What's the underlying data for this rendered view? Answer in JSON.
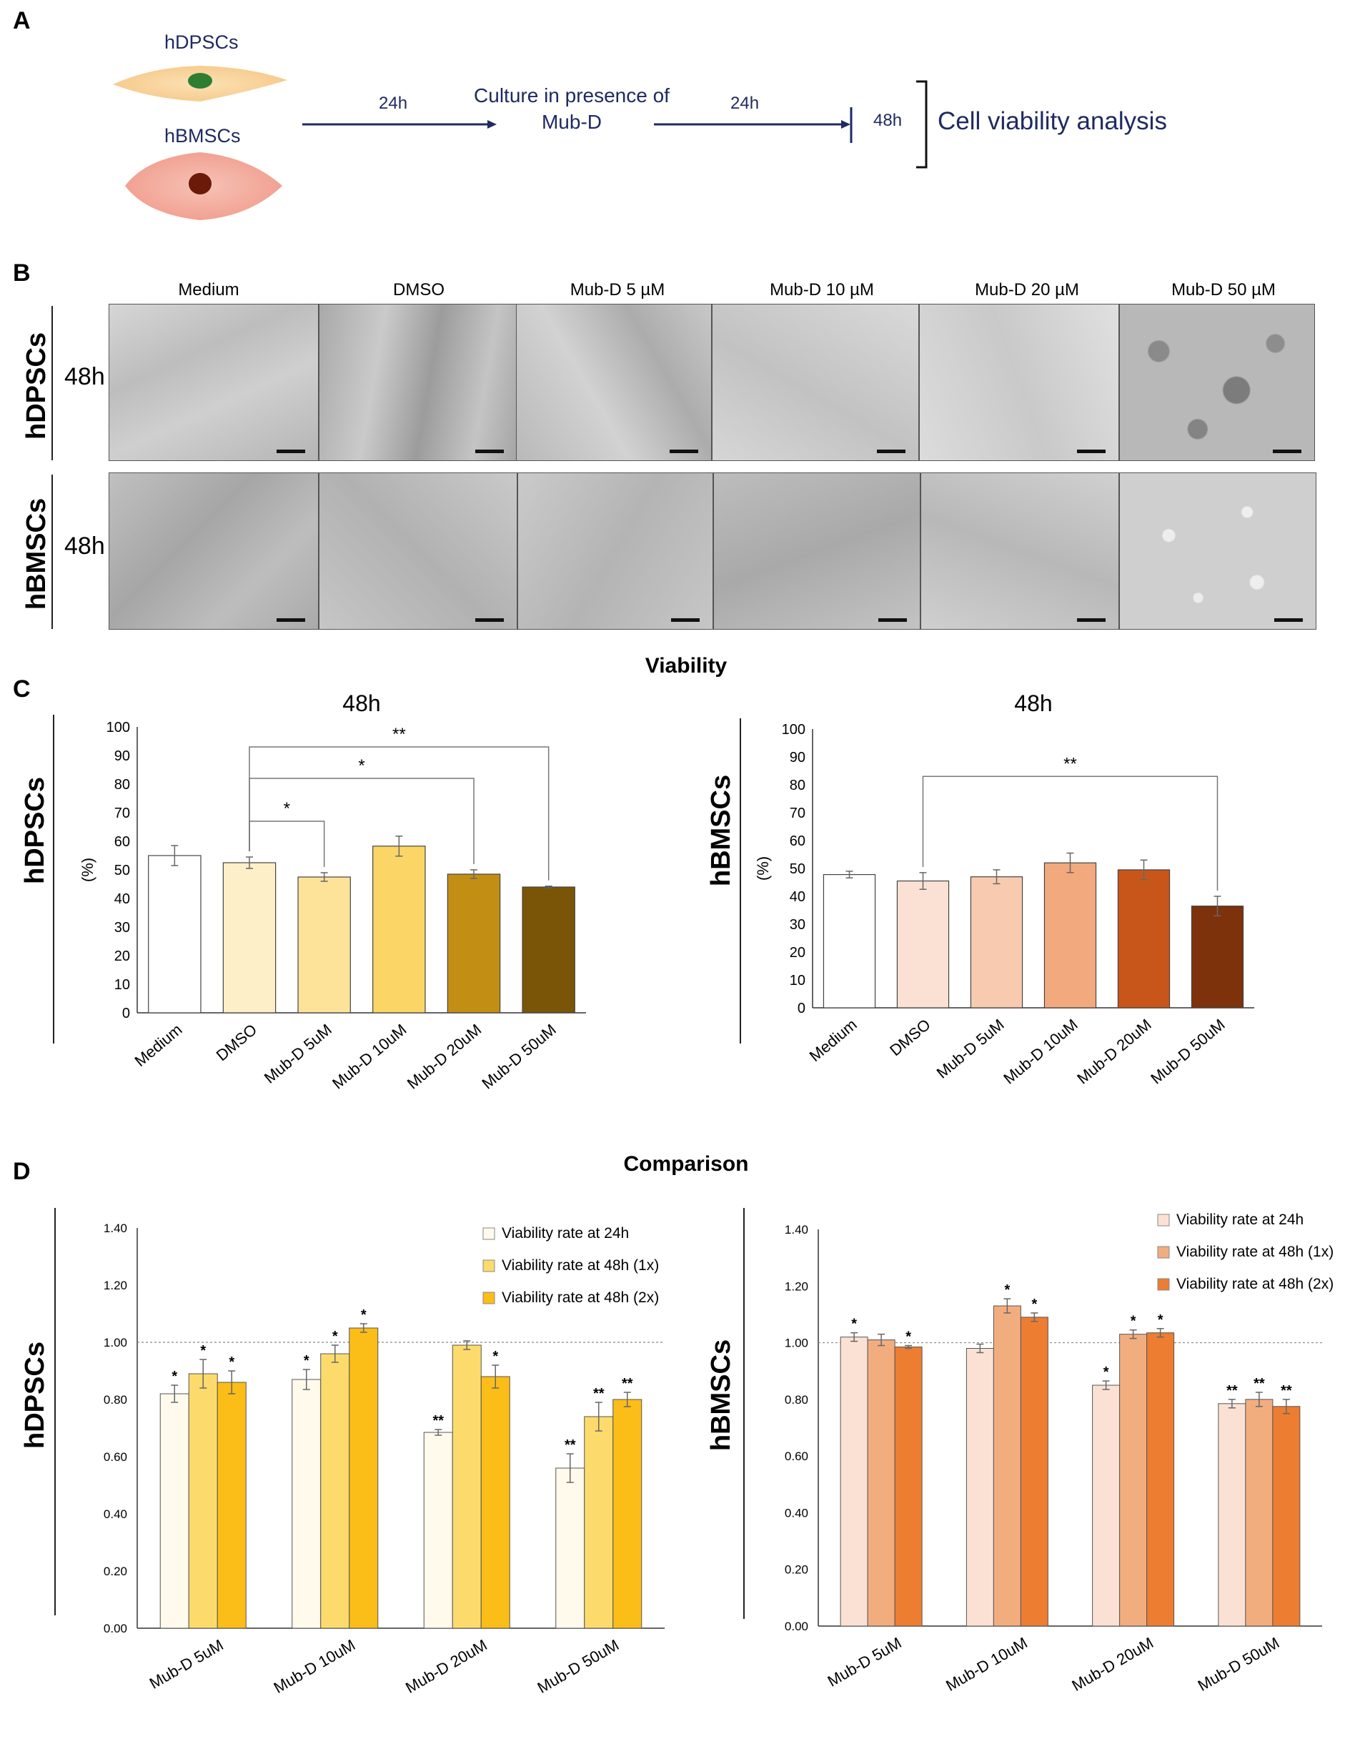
{
  "panels": {
    "a": "A",
    "b": "B",
    "c": "C",
    "d": "D"
  },
  "panel_a": {
    "cell1": "hDPSCs",
    "cell2": "hBMSCs",
    "step1_time": "24h",
    "step2_line1": "Culture in presence of",
    "step2_line2": "Mub-D",
    "step3_time": "24h",
    "total_time": "48h",
    "outcome": "Cell viability analysis"
  },
  "panel_b": {
    "columns": [
      "Medium",
      "DMSO",
      "Mub-D 5 µM",
      "Mub-D 10 µM",
      "Mub-D 20 µM",
      "Mub-D 50 µM"
    ],
    "row1_label": "hDPSCs",
    "row2_label": "hBMSCs",
    "time": "48h"
  },
  "section_c_title": "Viability",
  "section_d_title": "Comparison",
  "colors": {
    "navy": "#1f2a60",
    "dpsc_cell": "#f7d9a8",
    "dpsc_nucleus": "#2e7d32",
    "bmsc_cell": "#f4b8aa",
    "bmsc_nucleus": "#6b1a0a"
  },
  "chart_data": [
    {
      "id": "c_left",
      "type": "bar",
      "row_label": "hDPSCs",
      "title": "48h",
      "ylabel": "(%)",
      "ylim": [
        0,
        100
      ],
      "yticks": [
        0,
        10,
        20,
        30,
        40,
        50,
        60,
        70,
        80,
        90,
        100
      ],
      "categories": [
        "Medium",
        "DMSO",
        "Mub-D 5uM",
        "Mub-D 10uM",
        "Mub-D 20uM",
        "Mub-D 50uM"
      ],
      "values": [
        55,
        52.5,
        47.5,
        58.3,
        48.5,
        44
      ],
      "errors": [
        3.5,
        2,
        1.5,
        3.5,
        1.5,
        0.3
      ],
      "colors": [
        "#ffffff",
        "#fdf0c8",
        "#fde29a",
        "#fbd666",
        "#c28f14",
        "#7a5508"
      ],
      "significance": [
        {
          "from": 1,
          "to": 2,
          "label": "*"
        },
        {
          "from": 1,
          "to": 4,
          "label": "*"
        },
        {
          "from": 1,
          "to": 5,
          "label": "**"
        }
      ]
    },
    {
      "id": "c_right",
      "type": "bar",
      "row_label": "hBMSCs",
      "title": "48h",
      "ylabel": "(%)",
      "ylim": [
        0,
        100
      ],
      "yticks": [
        0,
        10,
        20,
        30,
        40,
        50,
        60,
        70,
        80,
        90,
        100
      ],
      "categories": [
        "Medium",
        "DMSO",
        "Mub-D 5uM",
        "Mub-D 10uM",
        "Mub-D 20uM",
        "Mub-D 50uM"
      ],
      "values": [
        47.8,
        45.5,
        47,
        52,
        49.5,
        36.5
      ],
      "errors": [
        1.2,
        3,
        2.5,
        3.5,
        3.5,
        3.5
      ],
      "colors": [
        "#ffffff",
        "#fbe1d4",
        "#f8cbb0",
        "#f2a97d",
        "#c8561a",
        "#7e320c"
      ],
      "significance": [
        {
          "from": 1,
          "to": 5,
          "label": "**"
        }
      ]
    },
    {
      "id": "d_left",
      "type": "bar",
      "row_label": "hDPSCs",
      "ylim": [
        0,
        1.4
      ],
      "yticks": [
        "0.00",
        "0.20",
        "0.40",
        "0.60",
        "0.80",
        "1.00",
        "1.20",
        "1.40"
      ],
      "reference_line": 1.0,
      "categories": [
        "Mub-D 5uM",
        "Mub-D 10uM",
        "Mub-D 20uM",
        "Mub-D 50uM"
      ],
      "series": [
        {
          "name": "Viability rate at 24h",
          "color": "#fffaec",
          "values": [
            0.82,
            0.87,
            0.685,
            0.56
          ],
          "errors": [
            0.03,
            0.035,
            0.01,
            0.05
          ],
          "stars": [
            "*",
            "*",
            "**",
            "**"
          ]
        },
        {
          "name": "Viability rate at 48h (1x)",
          "color": "#fcdb6c",
          "values": [
            0.89,
            0.96,
            0.99,
            0.74
          ],
          "errors": [
            0.05,
            0.03,
            0.015,
            0.05
          ],
          "stars": [
            "*",
            "*",
            "",
            "**"
          ]
        },
        {
          "name": "Viability rate at 48h (2x)",
          "color": "#fbbd17",
          "values": [
            0.86,
            1.05,
            0.88,
            0.8
          ],
          "errors": [
            0.04,
            0.015,
            0.04,
            0.025
          ],
          "stars": [
            "*",
            "*",
            "*",
            "**"
          ]
        }
      ]
    },
    {
      "id": "d_right",
      "type": "bar",
      "row_label": "hBMSCs",
      "ylim": [
        0,
        1.4
      ],
      "yticks": [
        "0.00",
        "0.20",
        "0.40",
        "0.60",
        "0.80",
        "1.00",
        "1.20",
        "1.40"
      ],
      "reference_line": 1.0,
      "categories": [
        "Mub-D 5uM",
        "Mub-D 10uM",
        "Mub-D 20uM",
        "Mub-D 50uM"
      ],
      "series": [
        {
          "name": "Viability rate at 24h",
          "color": "#fbe1d4",
          "values": [
            1.02,
            0.98,
            0.85,
            0.785
          ],
          "errors": [
            0.015,
            0.015,
            0.015,
            0.015
          ],
          "stars": [
            "*",
            "",
            "*",
            "**"
          ]
        },
        {
          "name": "Viability rate at 48h (1x)",
          "color": "#f2ad7f",
          "values": [
            1.01,
            1.13,
            1.03,
            0.8
          ],
          "errors": [
            0.02,
            0.025,
            0.015,
            0.025
          ],
          "stars": [
            "",
            "*",
            "*",
            "**"
          ]
        },
        {
          "name": "Viability rate at 48h (2x)",
          "color": "#ed7d31",
          "values": [
            0.985,
            1.09,
            1.035,
            0.775
          ],
          "errors": [
            0.005,
            0.015,
            0.015,
            0.025
          ],
          "stars": [
            "*",
            "*",
            "*",
            "**"
          ]
        }
      ]
    }
  ]
}
